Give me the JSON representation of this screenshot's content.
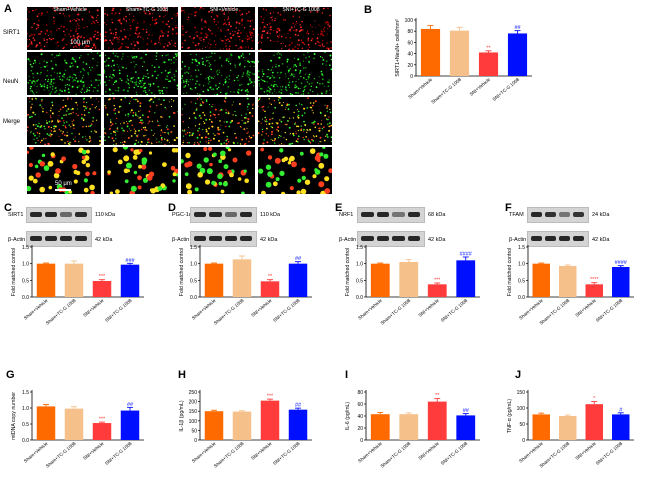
{
  "colors": {
    "c0": "#ff6a00",
    "c1": "#f5c08a",
    "c2": "#ff3b3b",
    "c3": "#0010ff"
  },
  "panelA": {
    "label": "A",
    "columns": [
      "Sham+Vehicle",
      "Sham+TC-G 1008",
      "SNI+Vehicle",
      "SNI+TC-G 1008"
    ],
    "rows": [
      "SIRT1",
      "NeuN",
      "Merge"
    ],
    "scale1": "100 μm",
    "scale2": "50 μm"
  },
  "blots": [
    {
      "label": "C",
      "protein": "SIRT1",
      "kda": "110 kDa",
      "actin": "β-Actin",
      "actin_kda": "42 kDa"
    },
    {
      "label": "D",
      "protein": "PGC-1α",
      "kda": "110 kDa",
      "actin": "β-Actin",
      "actin_kda": "42 kDa"
    },
    {
      "label": "E",
      "protein": "NRF1",
      "kda": "68 kDa",
      "actin": "β-Actin",
      "actin_kda": "42 kDa"
    },
    {
      "label": "F",
      "protein": "TFAM",
      "kda": "24 kDa",
      "actin": "β-Actin",
      "actin_kda": "42 kDa"
    }
  ],
  "chart_data": [
    {
      "label": "B",
      "type": "bar",
      "categories": [
        "Sham+Vehicle",
        "Sham+TC-G 1008",
        "SNI+Vehicle",
        "SNI+TC-G 1008"
      ],
      "values": [
        84,
        81,
        42,
        76
      ],
      "errors": [
        6,
        6,
        3,
        5
      ],
      "ylabel": "SIRT1+NeuN+ cells/mm²",
      "ylim": [
        0,
        100
      ],
      "yticks": [
        0,
        20,
        40,
        60,
        80,
        100
      ],
      "sig": [
        "",
        "",
        "**",
        "##"
      ]
    },
    {
      "label": "C",
      "type": "bar",
      "categories": [
        "Sham+Vehicle",
        "Sham+TC-G 1008",
        "SNI+Vehicle",
        "SNI+TC-G 1008"
      ],
      "values": [
        1.0,
        1.0,
        0.48,
        0.97
      ],
      "errors": [
        0.02,
        0.08,
        0.04,
        0.04
      ],
      "ylabel": "Fold matched control",
      "ylim": [
        0,
        1.5
      ],
      "yticks": [
        0.0,
        0.5,
        1.0,
        1.5
      ],
      "sig": [
        "",
        "",
        "***",
        "###"
      ]
    },
    {
      "label": "D",
      "type": "bar",
      "categories": [
        "Sham+Vehicle",
        "Sham+TC-G 1008",
        "SNI+Vehicle",
        "SNI+TC-G 1008"
      ],
      "values": [
        1.0,
        1.13,
        0.47,
        1.0
      ],
      "errors": [
        0.02,
        0.1,
        0.05,
        0.06
      ],
      "ylabel": "Fold matched control",
      "ylim": [
        0,
        1.5
      ],
      "yticks": [
        0.0,
        0.5,
        1.0,
        1.5
      ],
      "sig": [
        "",
        "",
        "**",
        "##"
      ]
    },
    {
      "label": "E",
      "type": "bar",
      "categories": [
        "Sham+Vehicle",
        "Sham+TC-G 1008",
        "SNI+Vehicle",
        "SNI+TC-G 1008"
      ],
      "values": [
        1.0,
        1.05,
        0.38,
        1.1
      ],
      "errors": [
        0.02,
        0.07,
        0.04,
        0.1
      ],
      "ylabel": "Fold matched control",
      "ylim": [
        0,
        1.5
      ],
      "yticks": [
        0.0,
        0.5,
        1.0,
        1.5
      ],
      "sig": [
        "",
        "",
        "***",
        "####"
      ]
    },
    {
      "label": "F",
      "type": "bar",
      "categories": [
        "Sham+Vehicle",
        "Sham+TC-G 1008",
        "SNI+Vehicle",
        "SNI+TC-G 1008"
      ],
      "values": [
        1.0,
        0.93,
        0.38,
        0.9
      ],
      "errors": [
        0.02,
        0.03,
        0.05,
        0.04
      ],
      "ylabel": "Fold matched control",
      "ylim": [
        0,
        1.5
      ],
      "yticks": [
        0.0,
        0.5,
        1.0,
        1.5
      ],
      "sig": [
        "",
        "",
        "****",
        "####"
      ]
    },
    {
      "label": "G",
      "type": "bar",
      "categories": [
        "Sham+Vehicle",
        "Sham+TC-G 1008",
        "SNI+Vehicle",
        "SNI+TC-G 1008"
      ],
      "values": [
        1.05,
        0.98,
        0.53,
        0.92
      ],
      "errors": [
        0.06,
        0.06,
        0.03,
        0.1
      ],
      "ylabel": "mtDNA copy number",
      "ylim": [
        0,
        1.5
      ],
      "yticks": [
        0.0,
        0.5,
        1.0,
        1.5
      ],
      "sig": [
        "",
        "",
        "***",
        "##"
      ]
    },
    {
      "label": "H",
      "type": "bar",
      "categories": [
        "Sham+Vehicle",
        "Sham+TC-G 1008",
        "SNI+Vehicle",
        "SNI+TC-G 1008"
      ],
      "values": [
        150,
        148,
        205,
        158
      ],
      "errors": [
        5,
        4,
        8,
        8
      ],
      "ylabel": "IL-1β (pg/mL)",
      "ylim": [
        0,
        250
      ],
      "yticks": [
        0,
        50,
        100,
        150,
        200,
        250
      ],
      "sig": [
        "",
        "",
        "***",
        "##"
      ]
    },
    {
      "label": "I",
      "type": "bar",
      "categories": [
        "Sham+Vehicle",
        "Sham+TC-G 1008",
        "SNI+Vehicle",
        "SNI+TC-G 1008"
      ],
      "values": [
        43,
        43,
        64,
        41
      ],
      "errors": [
        3,
        2,
        5,
        3
      ],
      "ylabel": "IL-6 (pg/mL)",
      "ylim": [
        0,
        80
      ],
      "yticks": [
        0,
        20,
        40,
        60,
        80
      ],
      "sig": [
        "",
        "",
        "**",
        "##"
      ]
    },
    {
      "label": "J",
      "type": "bar",
      "categories": [
        "Sham+Vehicle",
        "Sham+TC-G 1008",
        "SNI+Vehicle",
        "SNI+TC-G 1008"
      ],
      "values": [
        80,
        75,
        112,
        80
      ],
      "errors": [
        4,
        3,
        8,
        5
      ],
      "ylabel": "TNF-α (pg/mL)",
      "ylim": [
        0,
        150
      ],
      "yticks": [
        0,
        50,
        100,
        150
      ],
      "sig": [
        "",
        "",
        "*",
        "#"
      ]
    }
  ]
}
